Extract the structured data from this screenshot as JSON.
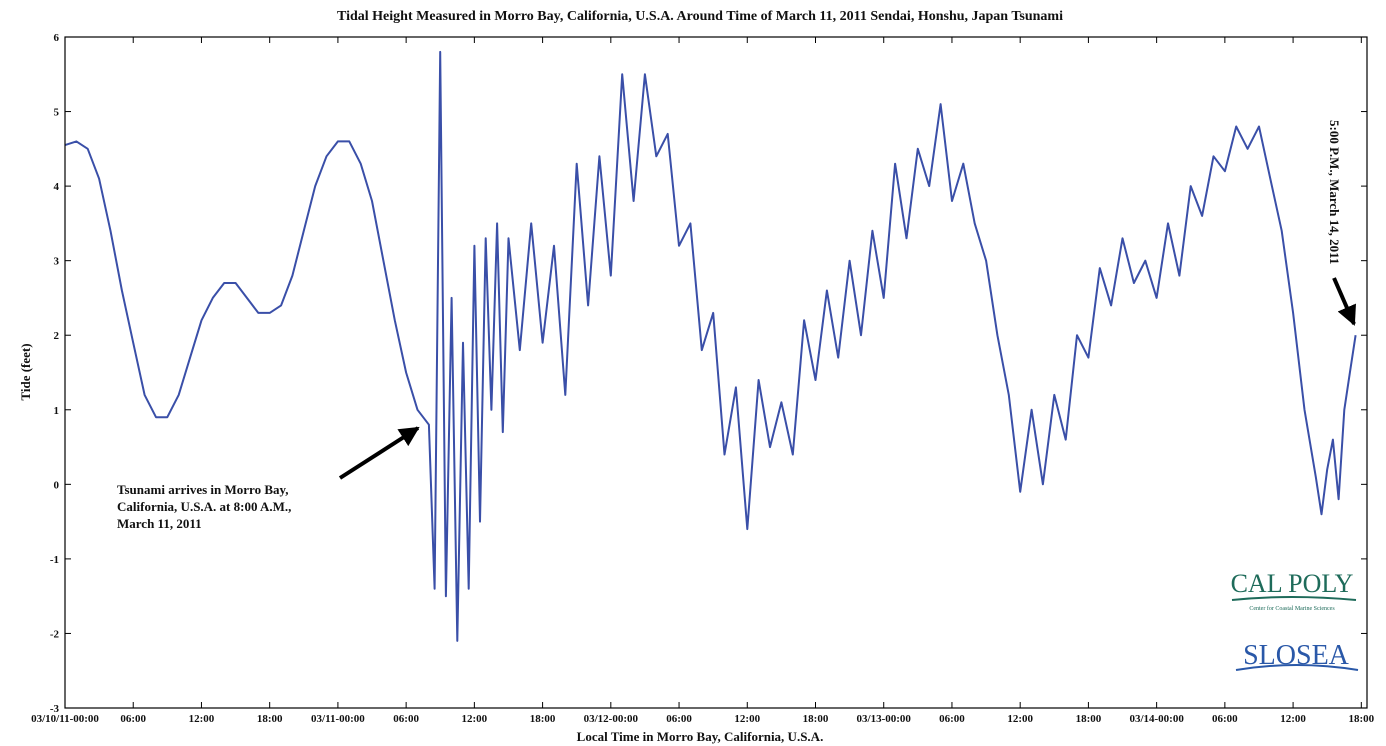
{
  "chart_data": {
    "type": "line",
    "title": "Tidal Height Measured in Morro Bay, California, U.S.A. Around Time of March 11, 2011 Sendai, Honshu, Japan Tsunami",
    "x_label": "Local Time in Morro Bay, California, U.S.A.",
    "y_label": "Tide (feet)",
    "annotations": [
      {
        "lines": [
          "Tsunami arrives in Morro Bay,",
          "California, U.S.A. at 8:00 A.M.,",
          "March 11, 2011"
        ]
      },
      {
        "lines": [
          "5:00 P.M., March 14, 2011"
        ]
      }
    ],
    "logos": [
      "CAL POLY",
      "Center for Coastal Marine Sciences",
      "SLOSEA"
    ],
    "xlim": [
      0,
      114.5
    ],
    "ylim": [
      -3,
      6
    ],
    "xticks": [
      {
        "value": 0,
        "label": "03/10/11-00:00"
      },
      {
        "value": 6,
        "label": "06:00"
      },
      {
        "value": 12,
        "label": "12:00"
      },
      {
        "value": 18,
        "label": "18:00"
      },
      {
        "value": 24,
        "label": "03/11-00:00"
      },
      {
        "value": 30,
        "label": "06:00"
      },
      {
        "value": 36,
        "label": "12:00"
      },
      {
        "value": 42,
        "label": "18:00"
      },
      {
        "value": 48,
        "label": "03/12-00:00"
      },
      {
        "value": 54,
        "label": "06:00"
      },
      {
        "value": 60,
        "label": "12:00"
      },
      {
        "value": 66,
        "label": "18:00"
      },
      {
        "value": 72,
        "label": "03/13-00:00"
      },
      {
        "value": 78,
        "label": "06:00"
      },
      {
        "value": 84,
        "label": "12:00"
      },
      {
        "value": 90,
        "label": "18:00"
      },
      {
        "value": 96,
        "label": "03/14-00:00"
      },
      {
        "value": 102,
        "label": "06:00"
      },
      {
        "value": 108,
        "label": "12:00"
      },
      {
        "value": 114,
        "label": "18:00"
      }
    ],
    "yticks": [
      -3,
      -2,
      -1,
      0,
      1,
      2,
      3,
      4,
      5,
      6
    ],
    "series": [
      {
        "name": "Tide",
        "color": "#3a4fa8",
        "x": [
          0,
          1,
          2,
          3,
          4,
          5,
          6,
          7,
          8,
          9,
          10,
          11,
          12,
          13,
          14,
          15,
          16,
          17,
          18,
          19,
          20,
          21,
          22,
          23,
          24,
          25,
          26,
          27,
          28,
          29,
          30,
          31,
          32,
          32.5,
          33,
          33.5,
          34,
          34.5,
          35,
          35.5,
          36,
          36.5,
          37,
          37.5,
          38,
          38.5,
          39,
          40,
          41,
          42,
          43,
          44,
          45,
          46,
          47,
          48,
          49,
          50,
          51,
          52,
          53,
          54,
          55,
          56,
          57,
          58,
          59,
          60,
          61,
          62,
          63,
          64,
          65,
          66,
          67,
          68,
          69,
          70,
          71,
          72,
          73,
          74,
          75,
          76,
          77,
          78,
          79,
          80,
          81,
          82,
          83,
          84,
          85,
          86,
          87,
          88,
          89,
          90,
          91,
          92,
          93,
          94,
          95,
          96,
          97,
          98,
          99,
          100,
          101,
          102,
          103,
          104,
          105,
          106,
          107,
          108,
          109,
          110,
          110.5,
          111,
          111.5,
          112,
          112.5,
          113,
          113.5
        ],
        "values": [
          4.55,
          4.6,
          4.5,
          4.1,
          3.4,
          2.6,
          1.9,
          1.2,
          0.9,
          0.9,
          1.2,
          1.7,
          2.2,
          2.5,
          2.7,
          2.7,
          2.5,
          2.3,
          2.3,
          2.4,
          2.8,
          3.4,
          4.0,
          4.4,
          4.6,
          4.6,
          4.3,
          3.8,
          3.0,
          2.2,
          1.5,
          1.0,
          0.8,
          -1.4,
          5.8,
          -1.5,
          2.5,
          -2.1,
          1.9,
          -1.4,
          3.2,
          -0.5,
          3.3,
          1.0,
          3.5,
          0.7,
          3.3,
          1.8,
          3.5,
          1.9,
          3.2,
          1.2,
          4.3,
          2.4,
          4.4,
          2.8,
          5.5,
          3.8,
          5.5,
          4.4,
          4.7,
          3.2,
          3.5,
          1.8,
          2.3,
          0.4,
          1.3,
          -0.6,
          1.4,
          0.5,
          1.1,
          0.4,
          2.2,
          1.4,
          2.6,
          1.7,
          3.0,
          2.0,
          3.4,
          2.5,
          4.3,
          3.3,
          4.5,
          4.0,
          5.1,
          3.8,
          4.3,
          3.5,
          3.0,
          2.0,
          1.2,
          -0.1,
          1.0,
          0.0,
          1.2,
          0.6,
          2.0,
          1.7,
          2.9,
          2.4,
          3.3,
          2.7,
          3.0,
          2.5,
          3.5,
          2.8,
          4.0,
          3.6,
          4.4,
          4.2,
          4.8,
          4.5,
          4.8,
          4.1,
          3.4,
          2.3,
          1.0,
          0.1,
          -0.4,
          0.2,
          0.6,
          -0.2,
          1.0,
          1.5,
          2.0
        ]
      }
    ]
  }
}
